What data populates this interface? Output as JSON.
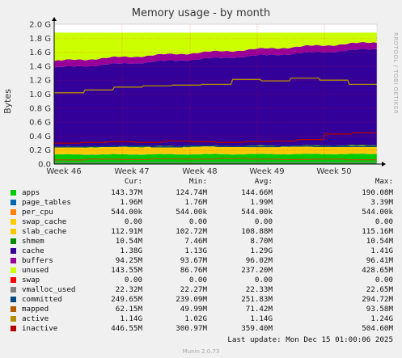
{
  "chart_data": {
    "type": "area",
    "title": "Memory usage - by month",
    "ylabel": "Bytes",
    "side_label": "RRDTOOL / TOBI OETIKER",
    "x_ticks": [
      "Week 46",
      "Week 47",
      "Week 48",
      "Week 49",
      "Week 50"
    ],
    "y_ticks": [
      "0.0",
      "0.2 G",
      "0.4 G",
      "0.6 G",
      "0.8 G",
      "1.0 G",
      "1.2 G",
      "1.4 G",
      "1.6 G",
      "1.8 G",
      "2.0 G"
    ],
    "ylim": [
      0,
      2.0
    ],
    "y_unit": "G",
    "grid": true,
    "x_time_span": "approx. Week 46 to mid Week 50, 2025",
    "columns": [
      "Cur:",
      "Min:",
      "Avg:",
      "Max:"
    ],
    "series": [
      {
        "name": "apps",
        "color": "#00cc00",
        "values": [
          "143.37M",
          "124.74M",
          "144.66M",
          "190.08M"
        ]
      },
      {
        "name": "page_tables",
        "color": "#0066b3",
        "values": [
          "1.96M",
          "1.76M",
          "1.99M",
          "3.39M"
        ]
      },
      {
        "name": "per_cpu",
        "color": "#ff8000",
        "values": [
          "544.00k",
          "544.00k",
          "544.00k",
          "544.00k"
        ]
      },
      {
        "name": "swap_cache",
        "color": "#ffcc00",
        "values": [
          "0.00",
          "0.00",
          "0.00",
          "0.00"
        ]
      },
      {
        "name": "slab_cache",
        "color": "#f7ca00",
        "values": [
          "112.91M",
          "102.72M",
          "108.88M",
          "115.16M"
        ]
      },
      {
        "name": "shmem",
        "color": "#008f00",
        "values": [
          "10.54M",
          "7.46M",
          "8.70M",
          "10.54M"
        ]
      },
      {
        "name": "cache",
        "color": "#330099",
        "values": [
          "1.38G",
          "1.13G",
          "1.29G",
          "1.41G"
        ]
      },
      {
        "name": "buffers",
        "color": "#990099",
        "values": [
          "94.25M",
          "93.67M",
          "96.02M",
          "96.41M"
        ]
      },
      {
        "name": "unused",
        "color": "#ccff00",
        "values": [
          "143.55M",
          "86.76M",
          "237.20M",
          "428.65M"
        ]
      },
      {
        "name": "swap",
        "color": "#ff0000",
        "values": [
          "0.00",
          "0.00",
          "0.00",
          "0.00"
        ]
      },
      {
        "name": "vmalloc_used",
        "color": "#808080",
        "values": [
          "22.32M",
          "22.27M",
          "22.33M",
          "22.65M"
        ]
      },
      {
        "name": "committed",
        "color": "#00487d",
        "values": [
          "249.65M",
          "239.09M",
          "251.83M",
          "294.72M"
        ]
      },
      {
        "name": "mapped",
        "color": "#b35a00",
        "values": [
          "62.15M",
          "49.99M",
          "71.42M",
          "93.58M"
        ]
      },
      {
        "name": "active",
        "color": "#b38f00",
        "values": [
          "1.14G",
          "1.02G",
          "1.14G",
          "1.24G"
        ]
      },
      {
        "name": "inactive",
        "color": "#b30000",
        "values": [
          "446.55M",
          "300.97M",
          "359.40M",
          "504.60M"
        ]
      }
    ]
  },
  "footer": {
    "last_update": "Last update: Mon Dec 15 01:00:06 2025",
    "munin": "Munin 2.0.73"
  }
}
